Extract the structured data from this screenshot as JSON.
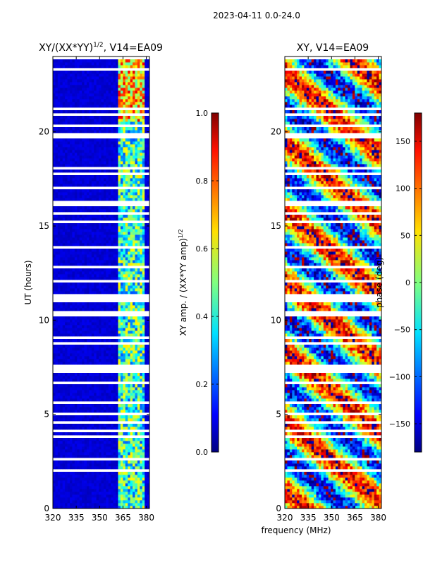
{
  "figure_title": "2023-04-11 0.0-24.0",
  "shared_xlabel": "frequency (MHz)",
  "chart_data": [
    {
      "type": "heatmap",
      "title_main": "XY/(XX*YY)",
      "title_sup": "1/2",
      "title_rest": ", V14=EA09",
      "ylabel": "UT (hours)",
      "xlim": [
        320,
        382
      ],
      "ylim": [
        0,
        24
      ],
      "xticks": [
        320,
        335,
        350,
        365,
        380
      ],
      "yticks": [
        0,
        5,
        10,
        15,
        20
      ],
      "colorbar": {
        "label": "XY amp. / (XX*YY amp)",
        "label_sup": "1/2",
        "range": [
          0.0,
          1.0
        ],
        "ticks": [
          "0.0",
          "0.2",
          "0.4",
          "0.6",
          "0.8",
          "1.0"
        ],
        "tick_values": [
          0.0,
          0.2,
          0.4,
          0.6,
          0.8,
          1.0
        ]
      }
    },
    {
      "type": "heatmap",
      "title_main": "XY, V14=EA09",
      "ylabel": "",
      "xlim": [
        320,
        382
      ],
      "ylim": [
        0,
        24
      ],
      "xticks": [
        320,
        335,
        350,
        365,
        380
      ],
      "yticks": [
        0,
        5,
        10,
        15,
        20
      ],
      "colorbar": {
        "label": "phase (deg)",
        "range": [
          -180,
          180
        ],
        "ticks": [
          "150",
          "100",
          "50",
          "0",
          "−50",
          "−100",
          "−150"
        ],
        "tick_values": [
          150,
          100,
          50,
          0,
          -50,
          -100,
          -150
        ]
      }
    }
  ]
}
